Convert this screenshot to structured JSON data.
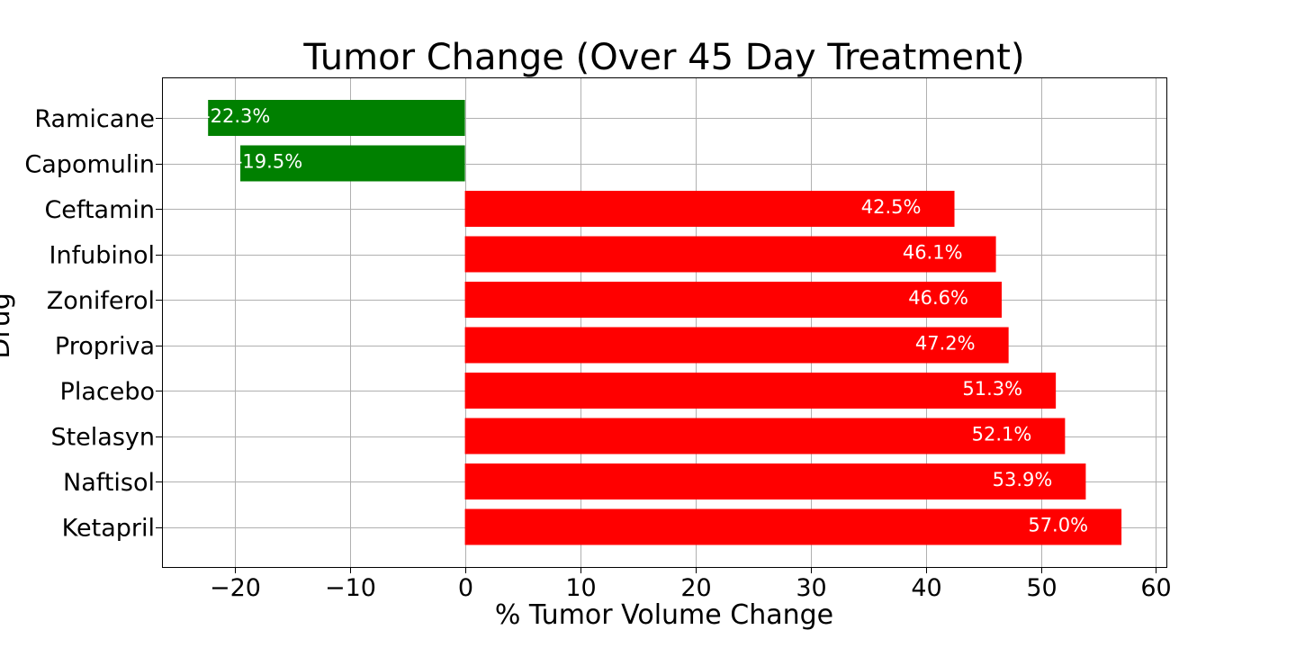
{
  "chart_data": {
    "type": "bar",
    "orientation": "horizontal",
    "title": "Tumor Change (Over 45 Day Treatment)",
    "xlabel": "% Tumor Volume Change",
    "ylabel": "Drug",
    "xlim": [
      -26.3,
      60.9
    ],
    "x_ticks": [
      -20,
      -10,
      0,
      10,
      20,
      30,
      40,
      50,
      60
    ],
    "x_tick_labels": [
      "−20",
      "−10",
      "0",
      "10",
      "20",
      "30",
      "40",
      "50",
      "60"
    ],
    "grid": true,
    "categories": [
      "Ramicane",
      "Capomulin",
      "Ceftamin",
      "Infubinol",
      "Zoniferol",
      "Propriva",
      "Placebo",
      "Stelasyn",
      "Naftisol",
      "Ketapril"
    ],
    "values": [
      -22.3,
      -19.5,
      42.5,
      46.1,
      46.6,
      47.2,
      51.3,
      52.1,
      53.9,
      57.0
    ],
    "data_labels": [
      "-22.3%",
      "-19.5%",
      "42.5%",
      "46.1%",
      "46.6%",
      "47.2%",
      "51.3%",
      "52.1%",
      "53.9%",
      "57.0%"
    ],
    "colors": {
      "negative": "#008000",
      "positive": "#ff0000"
    }
  }
}
